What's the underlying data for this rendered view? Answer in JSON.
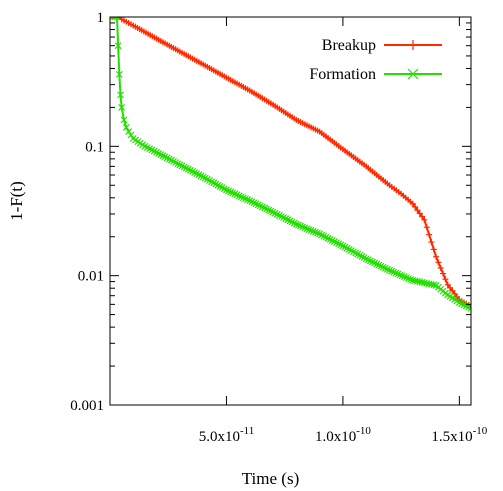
{
  "chart_data": {
    "type": "line",
    "title": "",
    "xlabel": "Time (s)",
    "ylabel": "1-F(t)",
    "xlim": [
      0,
      1.55e-10
    ],
    "ylim": [
      0.001,
      1
    ],
    "yscale": "log",
    "grid": false,
    "legend_position": "top-right",
    "x_ticks": [
      {
        "value": 5e-11,
        "mantissa": "5.0x10",
        "exponent": "-11"
      },
      {
        "value": 1e-10,
        "mantissa": "1.0x10",
        "exponent": "-10"
      },
      {
        "value": 1.5e-10,
        "mantissa": "1.5x10",
        "exponent": "-10"
      }
    ],
    "y_ticks": [
      {
        "value": 1,
        "label": "1"
      },
      {
        "value": 0.1,
        "label": "0.1"
      },
      {
        "value": 0.01,
        "label": "0.01"
      },
      {
        "value": 0.001,
        "label": "0.001"
      }
    ],
    "series": [
      {
        "name": "Breakup",
        "color": "#ff2a00",
        "marker": "plus",
        "x": [
          1e-12,
          2e-12,
          3e-12,
          4e-12,
          5e-12,
          1e-11,
          2e-11,
          3e-11,
          4e-11,
          5e-11,
          6e-11,
          7e-11,
          8e-11,
          9e-11,
          1e-10,
          1.1e-10,
          1.2e-10,
          1.25e-10,
          1.3e-10,
          1.35e-10,
          1.4e-10,
          1.45e-10,
          1.5e-10,
          1.55e-10
        ],
        "y": [
          1.0,
          1.0,
          1.0,
          1.0,
          0.96,
          0.86,
          0.68,
          0.54,
          0.43,
          0.34,
          0.27,
          0.21,
          0.16,
          0.13,
          0.095,
          0.07,
          0.05,
          0.043,
          0.036,
          0.027,
          0.014,
          0.0085,
          0.0065,
          0.0058
        ]
      },
      {
        "name": "Formation",
        "color": "#22e000",
        "marker": "cross",
        "x": [
          1e-12,
          2e-12,
          3e-12,
          3.5e-12,
          4e-12,
          4.5e-12,
          5e-12,
          6e-12,
          7e-12,
          8e-12,
          1e-11,
          1.5e-11,
          2e-11,
          3e-11,
          4e-11,
          5e-11,
          6e-11,
          7e-11,
          8e-11,
          9e-11,
          1e-10,
          1.1e-10,
          1.2e-10,
          1.3e-10,
          1.35e-10,
          1.4e-10,
          1.45e-10,
          1.5e-10,
          1.55e-10
        ],
        "y": [
          1.0,
          1.0,
          1.0,
          0.6,
          0.36,
          0.25,
          0.2,
          0.16,
          0.14,
          0.13,
          0.115,
          0.1,
          0.09,
          0.072,
          0.058,
          0.046,
          0.038,
          0.031,
          0.025,
          0.021,
          0.017,
          0.0135,
          0.011,
          0.0092,
          0.0088,
          0.0084,
          0.0071,
          0.0062,
          0.0056
        ]
      }
    ]
  }
}
